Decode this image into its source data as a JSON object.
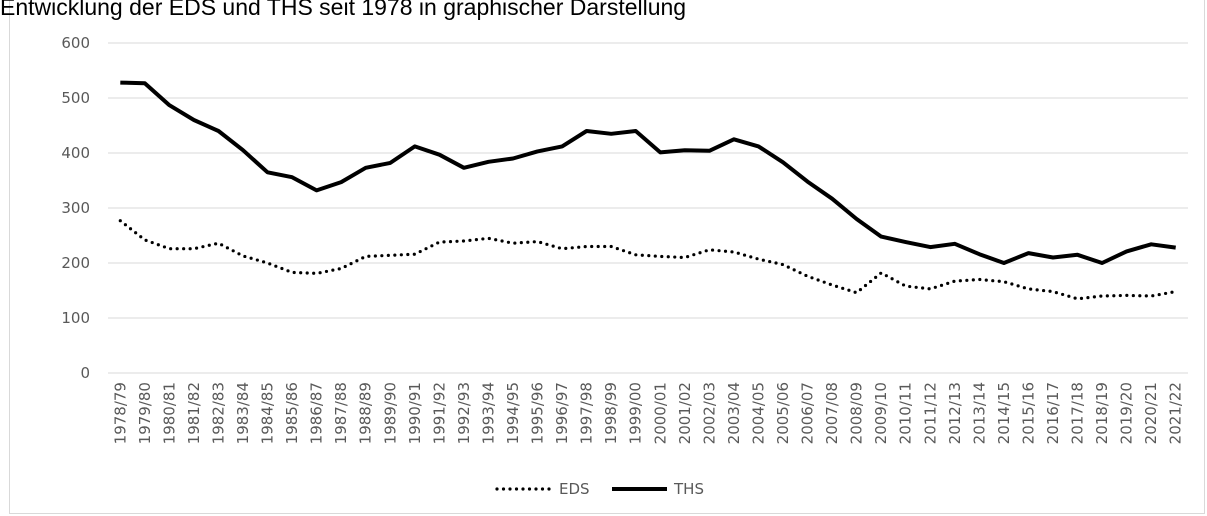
{
  "chart_data": {
    "type": "line",
    "title": "Entwicklung der EDS und THS seit 1978 in graphischer Darstellung",
    "xlabel": "",
    "ylabel": "",
    "ylim": [
      0,
      600
    ],
    "yticks": [
      "0",
      "100",
      "200",
      "300",
      "400",
      "500",
      "600"
    ],
    "grid": true,
    "legend_position": "bottom",
    "categories": [
      "1978/79",
      "1979/80",
      "1980/81",
      "1981/82",
      "1982/83",
      "1983/84",
      "1984/85",
      "1985/86",
      "1986/87",
      "1987/88",
      "1988/89",
      "1989/90",
      "1990/91",
      "1991/92",
      "1992/93",
      "1993/94",
      "1994/95",
      "1995/96",
      "1996/97",
      "1997/98",
      "1998/99",
      "1999/00",
      "2000/01",
      "2001/02",
      "2002/03",
      "2003/04",
      "2004/05",
      "2005/06",
      "2006/07",
      "2007/08",
      "2008/09",
      "2009/10",
      "2010/11",
      "2011/12",
      "2012/13",
      "2013/14",
      "2014/15",
      "2015/16",
      "2016/17",
      "2017/18",
      "2018/19",
      "2019/20",
      "2020/21",
      "2021/22"
    ],
    "series": [
      {
        "name": "EDS",
        "style": "dotted",
        "color": "#000000",
        "values": [
          277,
          242,
          226,
          226,
          236,
          213,
          200,
          183,
          181,
          190,
          212,
          214,
          216,
          238,
          240,
          245,
          236,
          239,
          226,
          230,
          230,
          215,
          212,
          210,
          224,
          220,
          207,
          197,
          176,
          160,
          146,
          182,
          158,
          153,
          167,
          170,
          166,
          153,
          148,
          135,
          140,
          141,
          140,
          148
        ]
      },
      {
        "name": "THS",
        "style": "solid",
        "color": "#000000",
        "values": [
          528,
          527,
          487,
          460,
          440,
          405,
          365,
          356,
          332,
          347,
          373,
          382,
          412,
          397,
          373,
          384,
          390,
          403,
          412,
          440,
          435,
          440,
          401,
          405,
          404,
          425,
          412,
          383,
          348,
          317,
          280,
          248,
          238,
          229,
          235,
          216,
          200,
          218,
          210,
          215,
          200,
          221,
          234,
          228
        ]
      }
    ]
  }
}
